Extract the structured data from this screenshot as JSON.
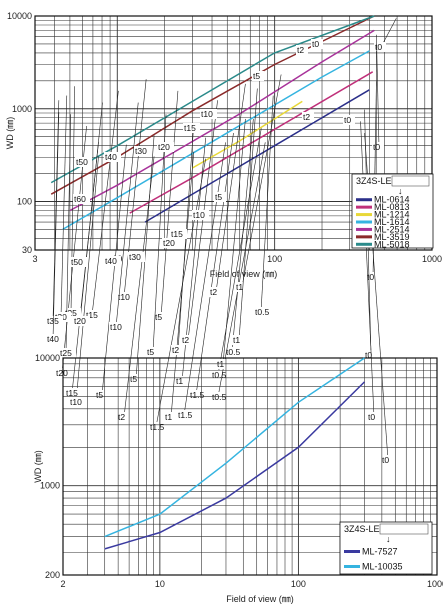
{
  "chart_data": [
    {
      "type": "line",
      "xlabel": "Field of view (㎜)",
      "ylabel": "WD (㎜)",
      "xscale": "log",
      "yscale": "log",
      "xlim": [
        3,
        1000
      ],
      "ylim": [
        30,
        10000
      ],
      "x_ticks": [
        "3",
        "10",
        "100",
        "1000"
      ],
      "y_ticks": [
        "30",
        "100",
        "1000",
        "10000"
      ],
      "grid": true,
      "legend": {
        "title": "3Z4S-LE",
        "placement": "bottom-right",
        "entries": [
          {
            "name": "ML-0614",
            "color": "#2b2f8a"
          },
          {
            "name": "ML-0813",
            "color": "#c0307a"
          },
          {
            "name": "ML-1214",
            "color": "#e8d838"
          },
          {
            "name": "ML-1614",
            "color": "#35b4e0"
          },
          {
            "name": "ML-2514",
            "color": "#a8329a"
          },
          {
            "name": "ML-3519",
            "color": "#8a2a2a"
          },
          {
            "name": "ML-5018",
            "color": "#2a8a8a"
          }
        ]
      },
      "series": [
        {
          "name": "ML-0614",
          "color": "#2b2f8a",
          "x": [
            15,
            40,
            100,
            400
          ],
          "y": [
            60,
            160,
            400,
            1600
          ]
        },
        {
          "name": "ML-0813",
          "color": "#c0307a",
          "x": [
            12,
            30,
            100,
            420
          ],
          "y": [
            75,
            180,
            600,
            2500
          ]
        },
        {
          "name": "ML-1214",
          "color": "#e8d838",
          "x": [
            30,
            60,
            150
          ],
          "y": [
            230,
            450,
            1200
          ]
        },
        {
          "name": "ML-1614",
          "color": "#35b4e0",
          "x": [
            4.5,
            10,
            50,
            200,
            400
          ],
          "y": [
            50,
            110,
            550,
            2200,
            4200
          ]
        },
        {
          "name": "ML-2514",
          "color": "#a8329a",
          "x": [
            5,
            10,
            60,
            200,
            430
          ],
          "y": [
            80,
            150,
            880,
            3200,
            7000
          ]
        },
        {
          "name": "ML-3519",
          "color": "#8a2a2a",
          "x": [
            3.8,
            10,
            30,
            100,
            430
          ],
          "y": [
            120,
            300,
            950,
            3000,
            10000
          ]
        },
        {
          "name": "ML-5018",
          "color": "#2a8a8a",
          "x": [
            3.8,
            10,
            30,
            100,
            430
          ],
          "y": [
            160,
            400,
            1200,
            4000,
            10000
          ]
        }
      ],
      "annotations": [
        "t0",
        "t0",
        "t0",
        "t0",
        "t0",
        "t0",
        "t0",
        "t0.5",
        "t0.5",
        "t0.5",
        "t0.5",
        "t1",
        "t1",
        "t1",
        "t1",
        "t1",
        "t1.5",
        "t1.5",
        "t1.5",
        "t2",
        "t2",
        "t2",
        "t2",
        "t5",
        "t5",
        "t5",
        "t5",
        "t10",
        "t10",
        "t10",
        "t15",
        "t15",
        "t20",
        "t20",
        "t25",
        "t25",
        "t30",
        "t35",
        "t40"
      ]
    },
    {
      "type": "line",
      "xlabel": "Field of view (㎜)",
      "ylabel": "WD (㎜)",
      "xscale": "log",
      "yscale": "log",
      "xlim": [
        2,
        1000
      ],
      "ylim": [
        200,
        10000
      ],
      "x_ticks": [
        "2",
        "10",
        "100",
        "1000"
      ],
      "y_ticks": [
        "200",
        "1000",
        "10000"
      ],
      "grid": true,
      "legend": {
        "title": "3Z4S-LE",
        "placement": "bottom-right",
        "entries": [
          {
            "name": "ML-7527",
            "color": "#3a3aa0"
          },
          {
            "name": "ML-10035",
            "color": "#35b4e0"
          }
        ]
      },
      "series": [
        {
          "name": "ML-7527",
          "color": "#3a3aa0",
          "x": [
            4,
            10,
            30,
            100,
            300
          ],
          "y": [
            320,
            430,
            800,
            2000,
            6500
          ]
        },
        {
          "name": "ML-10035",
          "color": "#35b4e0",
          "x": [
            4,
            10,
            30,
            100,
            300
          ],
          "y": [
            400,
            600,
            1500,
            4500,
            10000
          ]
        }
      ],
      "annotations": [
        "t0",
        "t0",
        "t2",
        "t2",
        "t5",
        "t5",
        "t10",
        "t10",
        "t15",
        "t15",
        "t20",
        "t20",
        "t30",
        "t30",
        "t40",
        "t40",
        "t50",
        "t50",
        "t60"
      ]
    }
  ]
}
